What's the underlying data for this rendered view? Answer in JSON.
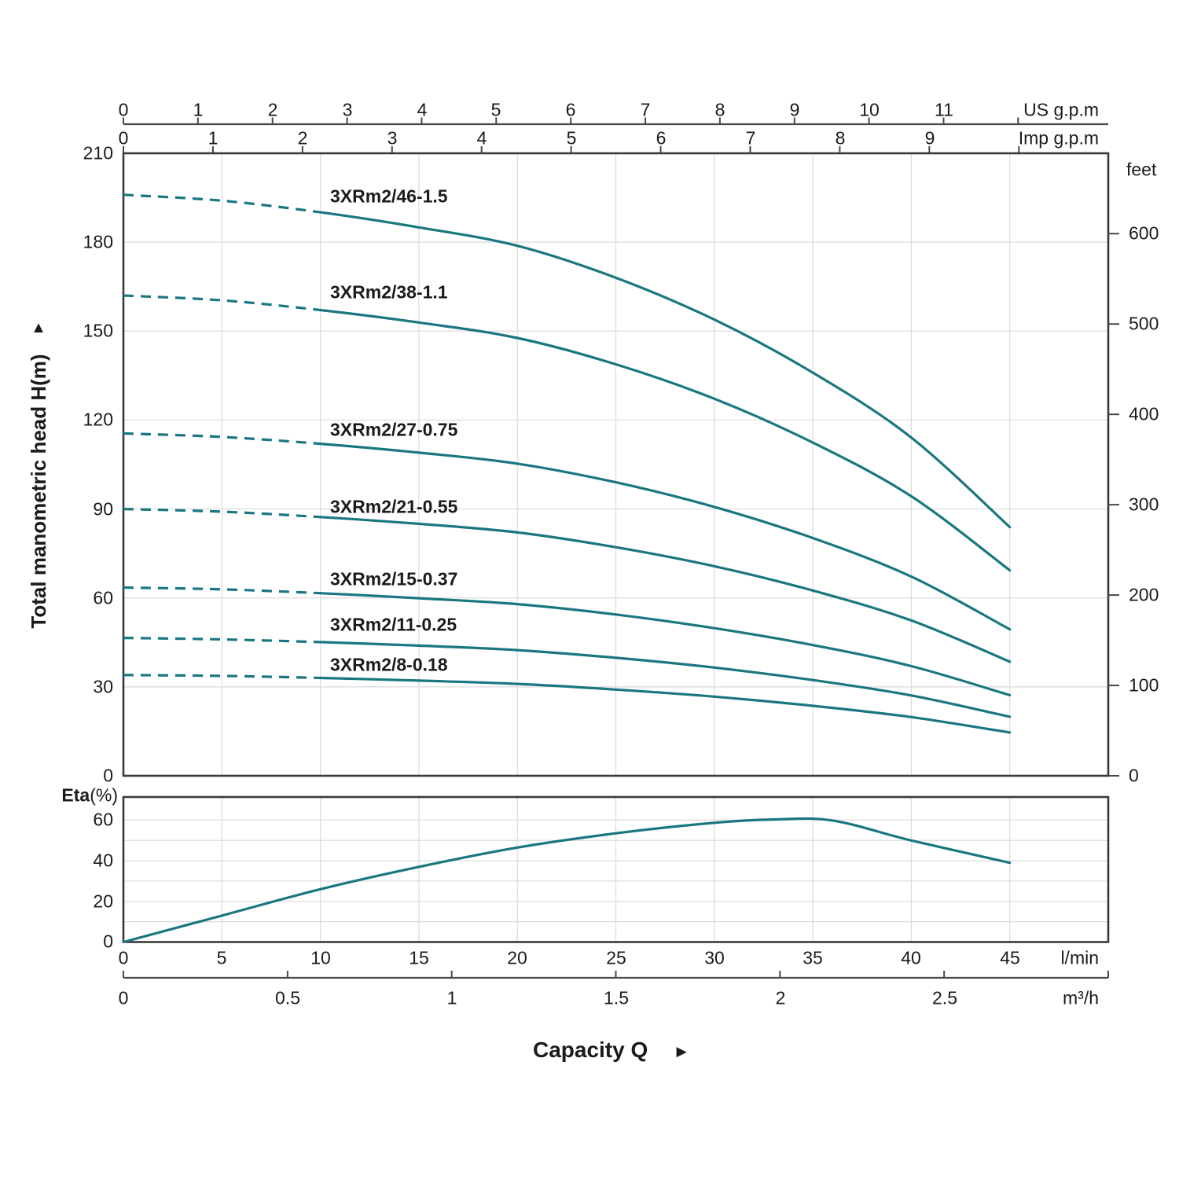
{
  "style": {
    "curve_color": "#1A7780",
    "grid_color": "#DBDBDB",
    "axis_color": "#474747",
    "border_color": "#3A3A3A",
    "text_color": "#1B1B1B",
    "background": "#FFFFFF"
  },
  "axes": {
    "us_gpm": {
      "name": "US g.p.m",
      "ticks": [
        "0",
        "1",
        "2",
        "3",
        "4",
        "5",
        "6",
        "7",
        "8",
        "9",
        "10",
        "11"
      ]
    },
    "imp_gpm": {
      "name": "Imp g.p.m",
      "ticks": [
        "0",
        "1",
        "2",
        "3",
        "4",
        "5",
        "6",
        "7",
        "8",
        "9"
      ]
    },
    "head": {
      "title": "Total manometric head H(m)",
      "arrow": "▲",
      "ticks": [
        "210",
        "180",
        "150",
        "120",
        "90",
        "60",
        "30",
        "0"
      ]
    },
    "feet": {
      "name": "feet",
      "ticks": [
        "600",
        "500",
        "400",
        "300",
        "200",
        "100",
        "0"
      ]
    },
    "lmin": {
      "name": "l/min",
      "ticks": [
        "0",
        "5",
        "10",
        "15",
        "20",
        "25",
        "30",
        "35",
        "40",
        "45"
      ]
    },
    "m3h": {
      "name": "m³/h",
      "ticks": [
        "0",
        "0.5",
        "1",
        "1.5",
        "2",
        "2.5"
      ]
    },
    "eta": {
      "label_bold": "Eta",
      "label_rest": "(%)",
      "ticks": [
        "60",
        "40",
        "20",
        "0"
      ]
    },
    "capacity": {
      "title": "Capacity Q",
      "arrow": "►"
    }
  },
  "chart_data": {
    "type": "line",
    "grid": true,
    "x_axis": {
      "label": "Capacity Q",
      "units": [
        "l/min",
        "m³/h",
        "US g.p.m",
        "Imp g.p.m"
      ],
      "lmin_ticks": [
        0,
        5,
        10,
        15,
        20,
        25,
        30,
        35,
        40,
        45
      ],
      "m3h_ticks": [
        0,
        0.5,
        1,
        1.5,
        2,
        2.5
      ],
      "us_gpm_ticks": [
        0,
        1,
        2,
        3,
        4,
        5,
        6,
        7,
        8,
        9,
        10,
        11
      ],
      "imp_gpm_ticks": [
        0,
        1,
        2,
        3,
        4,
        5,
        6,
        7,
        8,
        9
      ],
      "range_lmin": [
        0,
        50
      ]
    },
    "y_axis": {
      "label": "Total manometric head H(m)",
      "range_m": [
        0,
        210
      ],
      "tick_step_m": 30
    },
    "y2_axis": {
      "label": "feet",
      "ticks_feet": [
        600,
        500,
        400,
        300,
        200,
        100,
        0
      ]
    },
    "dashed_until_lmin": 10,
    "q_lmin": [
      0,
      5,
      10,
      15,
      20,
      25,
      30,
      35,
      40,
      45
    ],
    "head_series": [
      {
        "name": "3XRm2/46-1.5",
        "H_m": [
          196.0,
          194.0,
          190.1,
          185.0,
          178.8,
          168.0,
          153.9,
          136.0,
          114.1,
          83.9
        ]
      },
      {
        "name": "3XRm2/38-1.1",
        "H_m": [
          162.0,
          160.4,
          157.1,
          152.9,
          147.7,
          138.8,
          127.2,
          112.4,
          94.3,
          69.3
        ]
      },
      {
        "name": "3XRm2/27-0.75",
        "H_m": [
          115.5,
          114.3,
          112.0,
          109.0,
          105.3,
          99.0,
          90.7,
          80.2,
          67.2,
          49.4
        ]
      },
      {
        "name": "3XRm2/21-0.55",
        "H_m": [
          90.0,
          89.1,
          87.3,
          85.0,
          82.1,
          77.1,
          70.7,
          62.5,
          52.4,
          38.5
        ]
      },
      {
        "name": "3XRm2/15-0.37",
        "H_m": [
          63.5,
          62.9,
          61.6,
          59.9,
          57.9,
          54.4,
          49.8,
          44.1,
          37.0,
          27.2
        ]
      },
      {
        "name": "3XRm2/11-0.25",
        "H_m": [
          46.5,
          46.0,
          45.1,
          43.9,
          42.4,
          39.8,
          36.5,
          32.3,
          27.1,
          19.9
        ]
      },
      {
        "name": "3XRm2/8-0.18",
        "H_m": [
          34.0,
          33.7,
          33.0,
          32.1,
          31.0,
          29.1,
          26.7,
          23.6,
          19.8,
          14.6
        ]
      }
    ],
    "eta_curve": {
      "label": "Eta(%)",
      "range_pct": [
        0,
        71
      ],
      "tick_step_pct": 20,
      "q_lmin": [
        0,
        5,
        10,
        15,
        20,
        25,
        30,
        33,
        36,
        40,
        45
      ],
      "eta_pct": [
        0,
        13,
        26,
        37,
        46.5,
        53.5,
        58.7,
        60.3,
        59.8,
        50,
        39
      ]
    }
  }
}
